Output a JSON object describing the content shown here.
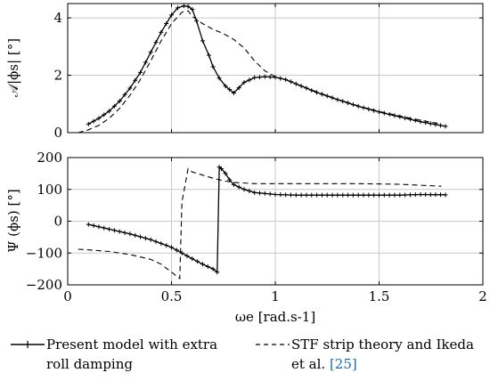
{
  "chart_data": [
    {
      "type": "line",
      "ylabel": "𝒜|ϕs| [°]",
      "xlim": [
        0,
        2
      ],
      "ylim": [
        0,
        4.5
      ],
      "xticks": [
        0,
        0.5,
        1,
        1.5,
        2
      ],
      "yticks": [
        0,
        2,
        4
      ],
      "ytick_labels": [
        "0",
        "2",
        "4"
      ],
      "grid": true,
      "series": [
        {
          "name": "Present model with extra roll damping",
          "style": "solid-plus",
          "x": [
            0.1,
            0.15,
            0.2,
            0.25,
            0.3,
            0.35,
            0.4,
            0.45,
            0.5,
            0.53,
            0.56,
            0.58,
            0.6,
            0.62,
            0.65,
            0.68,
            0.7,
            0.73,
            0.76,
            0.8,
            0.85,
            0.9,
            0.95,
            1.0,
            1.05,
            1.1,
            1.2,
            1.3,
            1.4,
            1.5,
            1.6,
            1.7,
            1.82
          ],
          "y": [
            0.3,
            0.5,
            0.75,
            1.1,
            1.55,
            2.1,
            2.8,
            3.5,
            4.1,
            4.35,
            4.42,
            4.4,
            4.3,
            3.9,
            3.2,
            2.7,
            2.3,
            1.9,
            1.62,
            1.38,
            1.75,
            1.92,
            1.95,
            1.93,
            1.85,
            1.7,
            1.4,
            1.15,
            0.92,
            0.72,
            0.55,
            0.38,
            0.22
          ]
        },
        {
          "name": "STF strip theory and Ikeda et al. [25]",
          "style": "dashed",
          "x": [
            0.05,
            0.1,
            0.15,
            0.2,
            0.25,
            0.3,
            0.35,
            0.4,
            0.45,
            0.5,
            0.55,
            0.58,
            0.6,
            0.65,
            0.7,
            0.75,
            0.8,
            0.85,
            0.9,
            0.95,
            1.0,
            1.05,
            1.1,
            1.2,
            1.3,
            1.4,
            1.5,
            1.6,
            1.7,
            1.8
          ],
          "y": [
            0.0,
            0.1,
            0.25,
            0.5,
            0.85,
            1.3,
            1.85,
            2.5,
            3.2,
            3.8,
            4.2,
            4.25,
            4.05,
            3.8,
            3.6,
            3.45,
            3.25,
            2.95,
            2.5,
            2.15,
            1.95,
            1.85,
            1.7,
            1.42,
            1.16,
            0.93,
            0.74,
            0.58,
            0.43,
            0.3
          ]
        }
      ]
    },
    {
      "type": "line",
      "ylabel": "Ψ (ϕs) [°]",
      "xlabel": "ωe [rad.s-1]",
      "xlim": [
        0,
        2
      ],
      "ylim": [
        -200,
        200
      ],
      "xticks": [
        0,
        0.5,
        1,
        1.5,
        2
      ],
      "xtick_labels": [
        "0",
        "0.5",
        "1",
        "1.5",
        "2"
      ],
      "yticks": [
        -200,
        -100,
        0,
        100,
        200
      ],
      "ytick_labels": [
        "−200",
        "−100",
        "0",
        "100",
        "200"
      ],
      "grid": true,
      "series": [
        {
          "name": "Present model with extra roll damping",
          "style": "solid-plus",
          "x": [
            0.1,
            0.2,
            0.3,
            0.4,
            0.5,
            0.55,
            0.6,
            0.65,
            0.7,
            0.72,
            0.73,
            0.74,
            0.76,
            0.78,
            0.8,
            0.85,
            0.9,
            0.95,
            1.0,
            1.1,
            1.2,
            1.4,
            1.6,
            1.7,
            1.82
          ],
          "y": [
            -10,
            -25,
            -40,
            -58,
            -82,
            -100,
            -118,
            -135,
            -150,
            -160,
            170,
            165,
            150,
            130,
            115,
            100,
            90,
            87,
            84,
            82,
            82,
            82,
            82,
            84,
            83
          ]
        },
        {
          "name": "STF strip theory and Ikeda et al. [25]",
          "style": "dashed",
          "x": [
            0.05,
            0.1,
            0.2,
            0.3,
            0.4,
            0.45,
            0.5,
            0.54,
            0.55,
            0.58,
            0.6,
            0.65,
            0.7,
            0.75,
            0.8,
            0.9,
            1.0,
            1.2,
            1.4,
            1.6,
            1.8
          ],
          "y": [
            -88,
            -90,
            -95,
            -105,
            -120,
            -135,
            -160,
            -180,
            60,
            165,
            155,
            145,
            135,
            127,
            122,
            118,
            118,
            118,
            118,
            116,
            110
          ]
        }
      ]
    }
  ],
  "legend": {
    "entries": [
      {
        "label": "Present model with extra\nroll damping",
        "style": "solid-plus"
      },
      {
        "label": "STF strip theory and Ikeda\net al. [25]",
        "style": "dashed"
      }
    ]
  }
}
